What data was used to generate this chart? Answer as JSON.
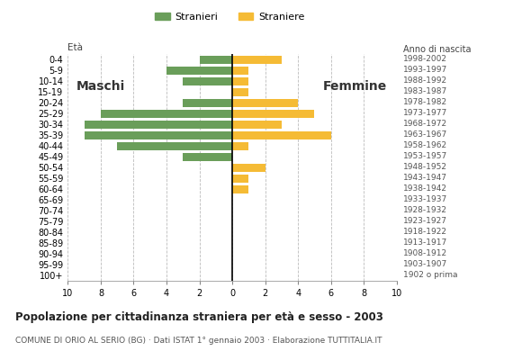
{
  "age_groups": [
    "100+",
    "95-99",
    "90-94",
    "85-89",
    "80-84",
    "75-79",
    "70-74",
    "65-69",
    "60-64",
    "55-59",
    "50-54",
    "45-49",
    "40-44",
    "35-39",
    "30-34",
    "25-29",
    "20-24",
    "15-19",
    "10-14",
    "5-9",
    "0-4"
  ],
  "birth_years": [
    "1902 o prima",
    "1903-1907",
    "1908-1912",
    "1913-1917",
    "1918-1922",
    "1923-1927",
    "1928-1932",
    "1933-1937",
    "1938-1942",
    "1943-1947",
    "1948-1952",
    "1953-1957",
    "1958-1962",
    "1963-1967",
    "1968-1972",
    "1973-1977",
    "1978-1982",
    "1983-1987",
    "1988-1992",
    "1993-1997",
    "1998-2002"
  ],
  "males": [
    0,
    0,
    0,
    0,
    0,
    0,
    0,
    0,
    0,
    0,
    0,
    3,
    7,
    9,
    9,
    8,
    3,
    0,
    3,
    4,
    2
  ],
  "females": [
    0,
    0,
    0,
    0,
    0,
    0,
    0,
    0,
    1,
    1,
    2,
    0,
    1,
    6,
    3,
    5,
    4,
    1,
    1,
    1,
    3
  ],
  "male_color": "#6a9e5a",
  "female_color": "#f5bb35",
  "title": "Popolazione per cittadinanza straniera per età e sesso - 2003",
  "subtitle": "COMUNE DI ORIO AL SERIO (BG) · Dati ISTAT 1° gennaio 2003 · Elaborazione TUTTITALIA.IT",
  "legend_male": "Stranieri",
  "legend_female": "Straniere",
  "xlabel_left": "Età",
  "xlabel_right": "Anno di nascita",
  "label_maschi": "Maschi",
  "label_femmine": "Femmine",
  "xlim": 10,
  "background_color": "#ffffff",
  "grid_color": "#bbbbbb"
}
